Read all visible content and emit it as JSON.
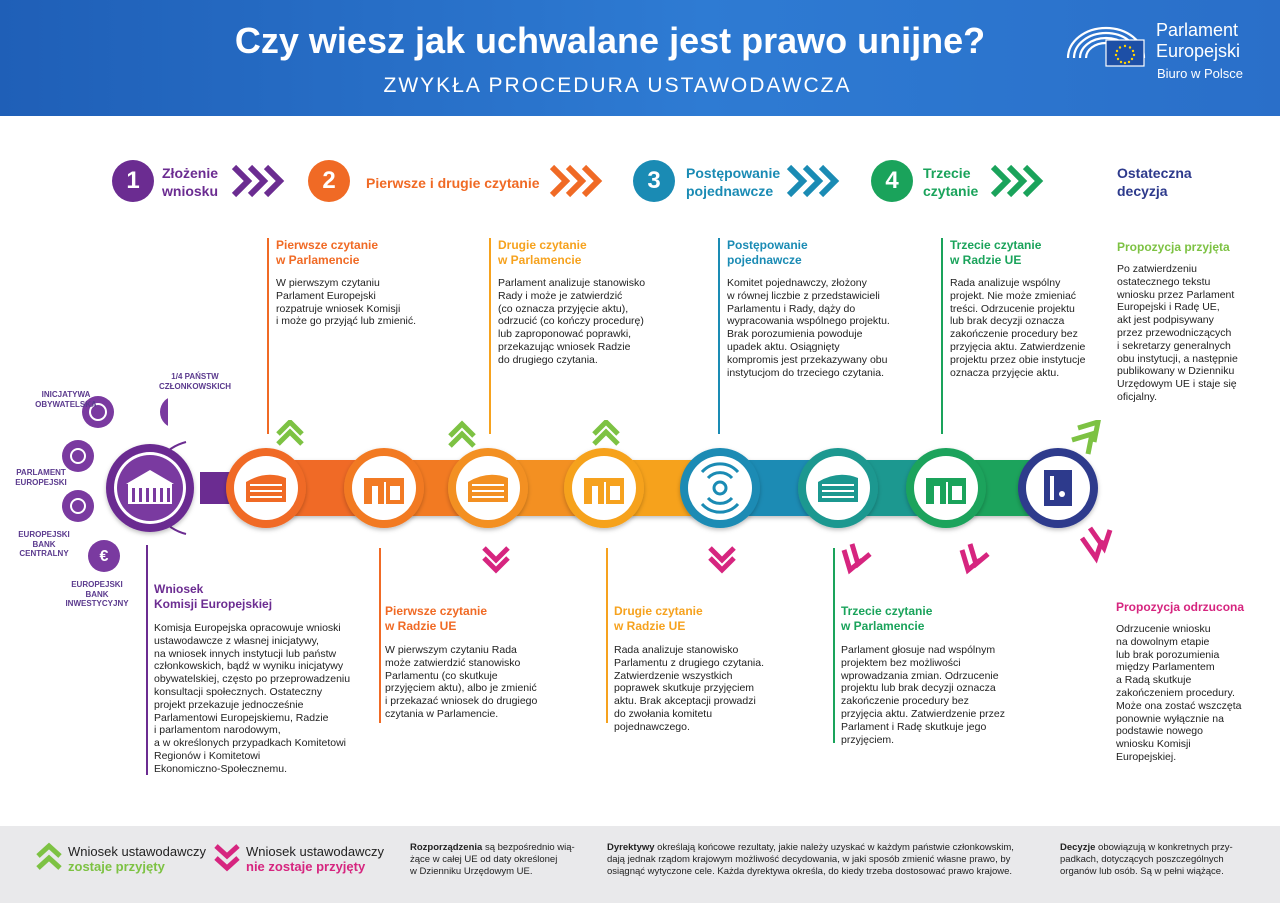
{
  "header": {
    "title": "Czy wiesz jak uchwalane jest prawo unijne?",
    "subtitle": "ZWYKŁA PROCEDURA USTAWODAWCZA",
    "logo_line1": "Parlament",
    "logo_line2": "Europejski",
    "logo_line3": "Biuro w Polsce"
  },
  "steps": [
    {
      "num": "1",
      "label": "Złożenie\nwniosku",
      "color": "#6b2c91"
    },
    {
      "num": "2",
      "label": "Pierwsze i drugie czytanie",
      "color": "#f06a25"
    },
    {
      "num": "3",
      "label": "Postępowanie\npojednawcze",
      "color": "#1a8bb4"
    },
    {
      "num": "4",
      "label": "Trzecie\nczytanie",
      "color": "#1aa35b"
    },
    {
      "num": "",
      "label": "Ostateczna\ndecyzja",
      "color": "#2d3a8c"
    }
  ],
  "blocks": {
    "ep_first": {
      "title": "Pierwsze czytanie\nw Parlamencie",
      "text": "W pierwszym czytaniu\nParlament Europejski\nrozpatruje wniosek Komisji\ni może go przyjąć lub zmienić."
    },
    "council_second": {
      "title": "Drugie czytanie\nw Parlamencie",
      "text": "Parlament analizuje stanowisko\nRady i może je zatwierdzić\n(co oznacza przyjęcie aktu),\nodrzucić (co kończy procedurę)\nlub zaproponować poprawki,\nprzekazując wniosek Radzie\ndo drugiego czytania."
    },
    "conciliation": {
      "title": "Postępowanie\npojednawcze",
      "text": "Komitet pojednawczy, złożony\nw równej liczbie z przedstawicieli\nParlamentu i Rady, dąży do\nwypracowania wspólnego projektu.\nBrak porozumienia powoduje\nupadek aktu. Osiągnięty\nkompromis jest przekazywany obu\ninstytucjom do trzeciego czytania."
    },
    "third_council": {
      "title": "Trzecie czytanie\nw Radzie UE",
      "text": "Rada analizuje wspólny\nprojekt. Nie może zmieniać\ntreści. Odrzucenie projektu\nlub brak decyzji oznacza\nzakończenie procedury bez\nprzyjęcia aktu. Zatwierdzenie\nprojektu przez obie instytucje\noznacza przyjęcie aktu."
    },
    "accepted": {
      "title": "Propozycja przyjęta",
      "text": "Po zatwierdzeniu\nostatecznego tekstu\nwniosku przez Parlament\nEuropejski i Radę UE,\nakt jest podpisywany\nprzez przewodniczących\ni sekretarzy generalnych\nobu instytucji, a następnie\npublikowany w Dzienniku\nUrzędowym UE i staje się\noficjalny."
    },
    "commission": {
      "title": "Wniosek\nKomisji Europejskiej",
      "text": "Komisja Europejska opracowuje wnioski\nustawodawcze z własnej inicjatywy,\nna wniosek innych instytucji lub państw\nczłonkowskich, bądź w wyniku inicjatywy\nobywatelskiej, często po przeprowadzeniu\nkonsultacji społecznych. Ostateczny\nprojekt przekazuje jednocześnie\nParlamentowi Europejskiemu, Radzie\ni parlamentom narodowym,\na w określonych przypadkach Komitetowi\nRegionów i Komitetowi\nEkonomiczno-Społecznemu."
    },
    "council_first": {
      "title": "Pierwsze czytanie\nw Radzie UE",
      "text": "W pierwszym czytaniu Rada\nmoże zatwierdzić stanowisko\nParlamentu (co skutkuje\nprzyjęciem aktu), albo je zmienić\ni przekazać wniosek do drugiego\nczytania w Parlamencie."
    },
    "council_second_low": {
      "title": "Drugie czytanie\nw Radzie UE",
      "text": "Rada analizuje stanowisko\nParlamentu z drugiego czytania.\nZatwierdzenie wszystkich\npoprawek skutkuje przyjęciem\naktu. Brak akceptacji prowadzi\ndo zwołania komitetu\npojednawczego."
    },
    "third_ep": {
      "title": "Trzecie czytanie\nw Parlamencie",
      "text": "Parlament głosuje nad wspólnym\nprojektem bez możliwości\nwprowadzania zmian. Odrzucenie\nprojektu lub brak decyzji oznacza\nzakończenie procedury bez\nprzyjęcia aktu. Zatwierdzenie przez\nParlament i Radę skutkuje jego\nprzyjęciem."
    },
    "rejected": {
      "title": "Propozycja odrzucona",
      "text": "Odrzucenie wniosku\nna dowolnym etapie\nlub brak porozumienia\nmiędzy Parlamentem\na Radą skutkuje\nzakończeniem procedury.\nMoże ona zostać wszczęta\nponownie wyłącznie na\npodstawie nowego\nwniosku Komisji\nEuropejskiej."
    }
  },
  "side_labels": {
    "citizens": "INICJATYWA\nOBYWATELSKA",
    "member_states": "1/4 PAŃSTW\nCZŁONKOWSKICH",
    "parliament": "PARLAMENT\nEUROPEJSKI",
    "ecb": "EUROPEJSKI\nBANK\nCENTRALNY",
    "eib": "EUROPEJSKI\nBANK\nINWESTYCYJNY"
  },
  "footer": {
    "accepted_line1": "Wniosek ustawodawczy",
    "accepted_line2": "zostaje przyjęty",
    "rejected_line1": "Wniosek ustawodawczy",
    "rejected_line2": "nie zostaje przyjęty",
    "reg_term": "Rozporządzenia",
    "reg_text": " są bezpośrednio wią-\nżące w całej UE od daty określonej\nw Dzienniku Urzędowym UE.",
    "dir_term": "Dyrektywy",
    "dir_text": " określają końcowe rezultaty, jakie należy uzyskać w każdym państwie członkowskim,\ndają jednak rządom krajowym możliwość decydowania, w jaki sposób zmienić własne prawo, by\nosiągnąć wytyczone cele. Każda dyrektywa określa, do kiedy trzeba dostosować prawo krajowe.",
    "dec_term": "Decyzje",
    "dec_text": " obowiązują w konkretnych przy-\npadkach, dotyczących poszczególnych\norganów lub osób. Są w pełni wiążące."
  },
  "colors": {
    "purple": "#6b2c91",
    "orange": "#f06a25",
    "amber": "#f6a21e",
    "teal": "#1a8bb4",
    "green": "#1aa35b",
    "navy": "#2d3a8c",
    "accept_green": "#7dc243",
    "reject_pink": "#d6257f"
  }
}
